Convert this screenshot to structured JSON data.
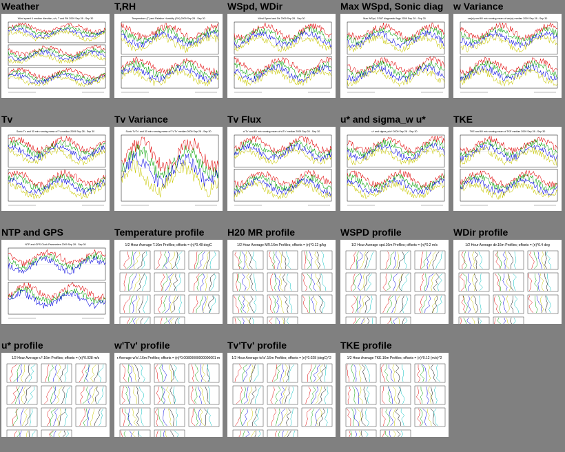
{
  "panels": [
    {
      "title": "Weather",
      "caption": "Wind speed & median direction, u/v, T and RH  2009 Sep 28 - Sep 30",
      "type": "ts",
      "rows": 3
    },
    {
      "title": "T,RH",
      "caption": "Temperature (T) and Relative Humidity (RH) 2009 Sep 28 - Sep 30",
      "type": "ts",
      "rows": 2
    },
    {
      "title": "WSpd, WDir",
      "caption": "Wind Speed and Dir  2009 Sep 28 - Sep 30",
      "type": "ts",
      "rows": 2
    },
    {
      "title": "Max WSpd, Sonic diag",
      "caption": "Max WSpd, CSAT diagnostic flags  2009 Sep 28 - Sep 30",
      "type": "ts",
      "rows": 2
    },
    {
      "title": "w Variance",
      "caption": "var(w) and 60 min running mean of var(w) median 2009 Sep 28 - Sep 30",
      "type": "ts",
      "rows": 2
    },
    {
      "title": "Tv",
      "caption": "Sonic Tv and 30 min running mean of Tv median 2009 Sep 28 - Sep 30",
      "type": "ts",
      "rows": 2
    },
    {
      "title": "Tv Variance",
      "caption": "Sonic Tv'Tv' and 30 min running mean of Tv'Tv' median 2009 Sep 28 - Sep 30",
      "type": "ts",
      "rows": 1
    },
    {
      "title": "Tv Flux",
      "caption": "w'Tv' and 60 min running mean of w'Tv' median 2009 Sep 28 - Sep 30",
      "type": "ts",
      "rows": 2
    },
    {
      "title": "u* and sigma_w u*",
      "caption": "u* and sigma_w/u*  2009 Sep 28 - Sep 30",
      "type": "ts",
      "rows": 2
    },
    {
      "title": "TKE",
      "caption": "TKE and 60 min running mean of TKE median 2009 Sep 28 - Sep 30",
      "type": "ts",
      "rows": 2
    },
    {
      "title": "NTP and GPS",
      "caption": "NTP and GPS Clock Parameters 2009 Sep 28 - Sep 30",
      "type": "ts",
      "rows": 2
    },
    {
      "title": "Temperature profile",
      "caption": "1/2 Hour Average T.16m Profiles; offsets = (n)*0.48 degC",
      "type": "profile"
    },
    {
      "title": "H20 MR profile",
      "caption": "1/2 Hour Average MR.16m Profiles; offsets = (n)*0.12 g/kg",
      "type": "profile"
    },
    {
      "title": "WSPD profile",
      "caption": "1/2 Hour Average spd.16m Profiles; offsets = (n)*0.2 m/s",
      "type": "profile"
    },
    {
      "title": "WDir profile",
      "caption": "1/2 Hour Average dir.16m Profiles; offsets = (n)*6.4 deg",
      "type": "profile"
    },
    {
      "title": "u* profile",
      "caption": "1/2 Hour Average u*.16m Profiles; offsets = (n)*0.028 m/s",
      "type": "profile"
    },
    {
      "title": "w'Tv' profile",
      "caption": "r Average w'tc'.16m Profiles; offsets = (n)*0.00800000000000001 m",
      "type": "profile"
    },
    {
      "title": "Tv'Tv' profile",
      "caption": "1/2 Hour Average tc'tc'.16m Profiles; offsets = (n)*0.028 (degC)^2",
      "type": "profile"
    },
    {
      "title": "TKE profile",
      "caption": "1/2 Hour Average TKE.16m Profiles; offsets = (n)*0.12 (m/s)^2",
      "type": "profile"
    }
  ],
  "colors": {
    "background": "#808080",
    "series": [
      "#e00000",
      "#00a000",
      "#0000e0",
      "#c8c800",
      "#000000",
      "#00c0c0"
    ]
  }
}
